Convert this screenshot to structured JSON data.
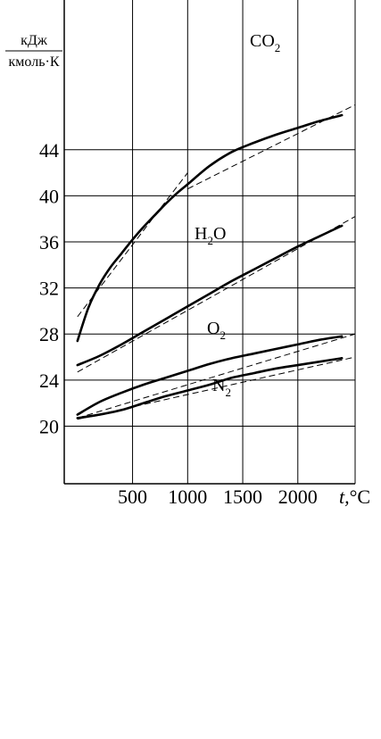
{
  "chart_data": {
    "type": "line",
    "ylabel_numerator": "кДж",
    "ylabel_denominator": "кмоль·К",
    "xlabel_var": "t,",
    "xlabel_unit": "°C",
    "xlim": [
      -120,
      2520
    ],
    "ylim": [
      15,
      57
    ],
    "xticks": [
      500,
      1000,
      1500,
      2000
    ],
    "xtick_labels": [
      "500",
      "1000",
      "1500",
      "2000"
    ],
    "yticks": [
      20,
      24,
      28,
      32,
      36,
      40,
      44
    ],
    "ytick_labels": [
      "20",
      "24",
      "28",
      "32",
      "36",
      "40",
      "44"
    ],
    "series": [
      {
        "name": "CO",
        "name_sub": "2",
        "x": [
          0,
          100,
          200,
          300,
          400,
          500,
          600,
          700,
          800,
          900,
          1000,
          1200,
          1400,
          1600,
          1800,
          2000,
          2200,
          2400
        ],
        "y": [
          27.4,
          30.3,
          32.3,
          33.8,
          35.0,
          36.2,
          37.3,
          38.3,
          39.3,
          40.2,
          41.0,
          42.6,
          43.8,
          44.6,
          45.3,
          45.9,
          46.5,
          47.0
        ],
        "approx_x": [
          0,
          1000
        ],
        "approx_y": [
          29.5,
          42.0
        ],
        "approx2_x": [
          1000,
          2520
        ],
        "approx2_y": [
          40.6,
          47.9
        ]
      },
      {
        "name": "H",
        "name_sub": "2",
        "name_tail": "O",
        "x": [
          0,
          200,
          400,
          600,
          800,
          1000,
          1200,
          1400,
          1600,
          1800,
          2000,
          2200,
          2400
        ],
        "y": [
          25.3,
          26.1,
          27.1,
          28.2,
          29.3,
          30.4,
          31.5,
          32.6,
          33.6,
          34.6,
          35.6,
          36.5,
          37.4
        ],
        "approx_x": [
          0,
          2520
        ],
        "approx_y": [
          24.7,
          38.2
        ]
      },
      {
        "name": "O",
        "name_sub": "2",
        "x": [
          0,
          200,
          400,
          600,
          800,
          1000,
          1200,
          1400,
          1600,
          1800,
          2000,
          2200,
          2400
        ],
        "y": [
          21.0,
          22.1,
          22.9,
          23.6,
          24.2,
          24.8,
          25.4,
          25.9,
          26.3,
          26.7,
          27.1,
          27.5,
          27.8
        ],
        "approx_x": [
          0,
          2520
        ],
        "approx_y": [
          20.7,
          28.0
        ]
      },
      {
        "name": "N",
        "name_sub": "2",
        "x": [
          0,
          200,
          400,
          600,
          800,
          1000,
          1200,
          1400,
          1600,
          1800,
          2000,
          2200,
          2400
        ],
        "y": [
          20.7,
          21.0,
          21.4,
          22.0,
          22.6,
          23.1,
          23.6,
          24.2,
          24.6,
          25.0,
          25.3,
          25.6,
          25.9
        ],
        "approx_x": [
          0,
          2520
        ],
        "approx_y": [
          20.6,
          26.0
        ]
      }
    ],
    "grid": true,
    "legend": "inline labels next to curves"
  }
}
